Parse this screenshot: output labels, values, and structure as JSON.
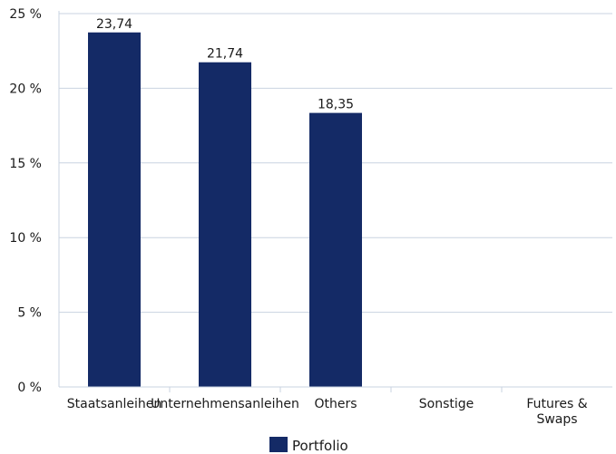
{
  "chart_data": {
    "type": "bar",
    "categories": [
      "Staatsanleihen",
      "Unternehmensanleihen",
      "Others",
      "Sonstige",
      "Futures & Swaps"
    ],
    "category_lines": [
      [
        "Staatsanleihen"
      ],
      [
        "Unternehmensanleihen"
      ],
      [
        "Others"
      ],
      [
        "Sonstige"
      ],
      [
        "Futures &",
        "Swaps"
      ]
    ],
    "series": [
      {
        "name": "Portfolio",
        "values": [
          23.74,
          21.74,
          18.35,
          null,
          null
        ],
        "color": "#142a66"
      }
    ],
    "data_labels": [
      "23,74",
      "21,74",
      "18,35",
      "",
      ""
    ],
    "ylim": [
      0,
      25
    ],
    "yticks": [
      0,
      5,
      10,
      15,
      20,
      25
    ],
    "ytick_labels": [
      "0 %",
      "5 %",
      "10 %",
      "15 %",
      "20 %",
      "25 %"
    ],
    "grid": "horizontal",
    "legend_position": "bottom-center",
    "axis_color": "#c9d3e0",
    "grid_color": "#c9d3e0"
  }
}
